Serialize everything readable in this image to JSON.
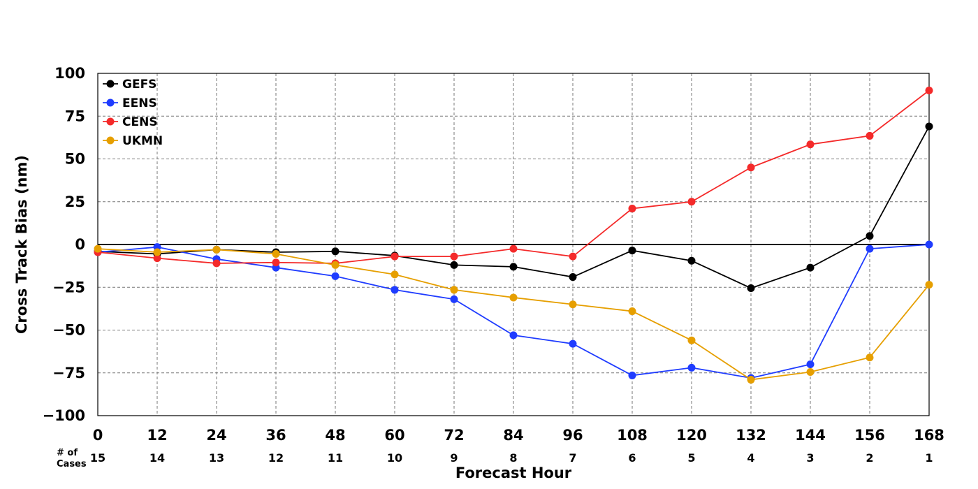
{
  "chart_data": {
    "type": "line",
    "xlabel": "Forecast Hour",
    "ylabel": "Cross Track Bias (nm)",
    "cases_label_line1": "# of",
    "cases_label_line2": "Cases",
    "x": [
      0,
      12,
      24,
      36,
      48,
      60,
      72,
      84,
      96,
      108,
      120,
      132,
      144,
      156,
      168
    ],
    "x_tick_labels": [
      "0",
      "12",
      "24",
      "36",
      "48",
      "60",
      "72",
      "84",
      "96",
      "108",
      "120",
      "132",
      "144",
      "156",
      "168"
    ],
    "cases": [
      "15",
      "14",
      "13",
      "12",
      "11",
      "10",
      "9",
      "8",
      "7",
      "6",
      "5",
      "4",
      "3",
      "2",
      "1"
    ],
    "xlim": [
      0,
      168
    ],
    "ylim": [
      -100,
      100
    ],
    "y_ticks": [
      100,
      75,
      50,
      25,
      0,
      -25,
      -50,
      -75,
      -100
    ],
    "y_tick_labels": [
      "100",
      "75",
      "50",
      "25",
      "0",
      "−25",
      "−50",
      "−75",
      "−100"
    ],
    "grid": true,
    "zero_line": true,
    "legend_position": "top-left",
    "series": [
      {
        "name": "GEFS",
        "color": "#000000",
        "values": [
          -4,
          -5.5,
          -3,
          -4.5,
          -4,
          -6.5,
          -12,
          -13,
          -19,
          -3.5,
          -9.5,
          -25.5,
          -13.5,
          5,
          69
        ]
      },
      {
        "name": "EENS",
        "color": "#1f3cff",
        "values": [
          -4.5,
          -1.5,
          -8.5,
          -13.5,
          -18.5,
          -26.5,
          -32,
          -53,
          -58,
          -76.5,
          -72,
          -78,
          -70,
          -2.5,
          0
        ]
      },
      {
        "name": "CENS",
        "color": "#f42a2a",
        "values": [
          -4.5,
          -8,
          -11,
          -10.5,
          -11,
          -7,
          -7,
          -2.5,
          -7,
          21,
          25,
          45,
          58.5,
          63.5,
          90
        ]
      },
      {
        "name": "UKMN",
        "color": "#e69f00",
        "values": [
          -2.5,
          -4.5,
          -3,
          -5.5,
          -12,
          -17.5,
          -26.5,
          -31,
          -35,
          -39,
          -56,
          -79,
          -74.5,
          -66,
          -23.5
        ]
      }
    ]
  }
}
